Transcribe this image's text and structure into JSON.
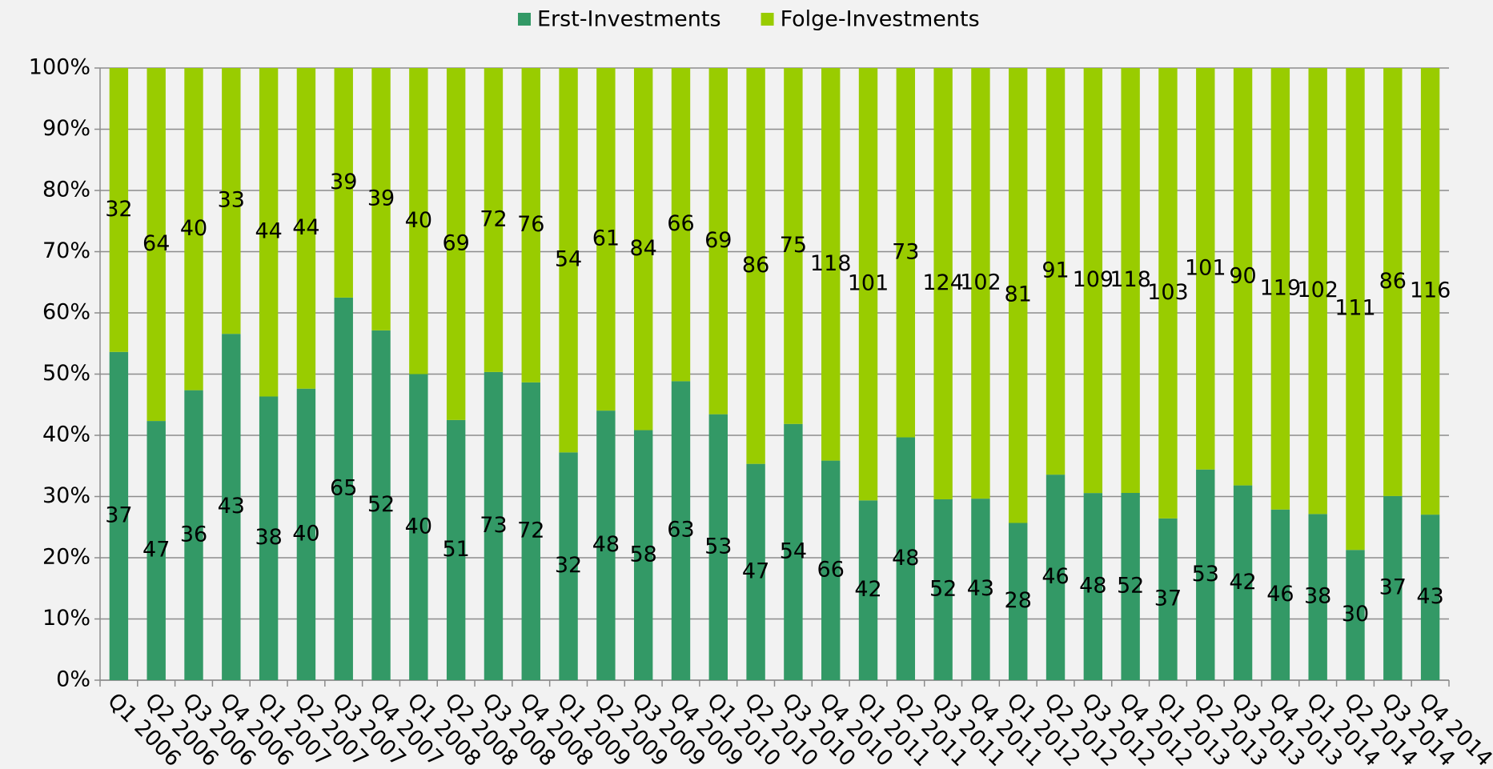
{
  "chart_data": {
    "type": "bar",
    "stacking": "percent",
    "categories": [
      "Q1 2006",
      "Q2 2006",
      "Q3 2006",
      "Q4 2006",
      "Q1 2007",
      "Q2 2007",
      "Q3 2007",
      "Q4 2007",
      "Q1 2008",
      "Q2 2008",
      "Q3 2008",
      "Q4 2008",
      "Q1 2009",
      "Q2 2009",
      "Q3 2009",
      "Q4 2009",
      "Q1 2010",
      "Q2 2010",
      "Q3 2010",
      "Q4 2010",
      "Q1 2011",
      "Q2 2011",
      "Q3 2011",
      "Q4 2011",
      "Q1 2012",
      "Q2 2012",
      "Q3 2012",
      "Q4 2012",
      "Q1 2013",
      "Q2 2013",
      "Q3 2013",
      "Q4 2013",
      "Q1 2014",
      "Q2 2014",
      "Q3 2014",
      "Q4 2014"
    ],
    "series": [
      {
        "name": "Erst-Investments",
        "color": "#339966",
        "values": [
          37,
          47,
          36,
          43,
          38,
          40,
          65,
          52,
          40,
          51,
          73,
          72,
          32,
          48,
          58,
          63,
          53,
          47,
          54,
          66,
          42,
          48,
          52,
          43,
          28,
          46,
          48,
          52,
          37,
          53,
          42,
          46,
          38,
          30,
          37,
          43
        ]
      },
      {
        "name": "Folge-Investments",
        "color": "#99cc00",
        "values": [
          32,
          64,
          40,
          33,
          44,
          44,
          39,
          39,
          40,
          69,
          72,
          76,
          54,
          61,
          84,
          66,
          69,
          86,
          75,
          118,
          101,
          73,
          124,
          102,
          81,
          91,
          109,
          118,
          103,
          101,
          90,
          119,
          102,
          111,
          86,
          116
        ]
      }
    ],
    "ylim": [
      0,
      100
    ],
    "yticks": [
      {
        "value": 0,
        "label": "0%"
      },
      {
        "value": 10,
        "label": "10%"
      },
      {
        "value": 20,
        "label": "20%"
      },
      {
        "value": 30,
        "label": "30%"
      },
      {
        "value": 40,
        "label": "40%"
      },
      {
        "value": 50,
        "label": "50%"
      },
      {
        "value": 60,
        "label": "60%"
      },
      {
        "value": 70,
        "label": "70%"
      },
      {
        "value": 80,
        "label": "80%"
      },
      {
        "value": 90,
        "label": "90%"
      },
      {
        "value": 100,
        "label": "100%"
      }
    ],
    "grid": true,
    "legend": "top"
  }
}
